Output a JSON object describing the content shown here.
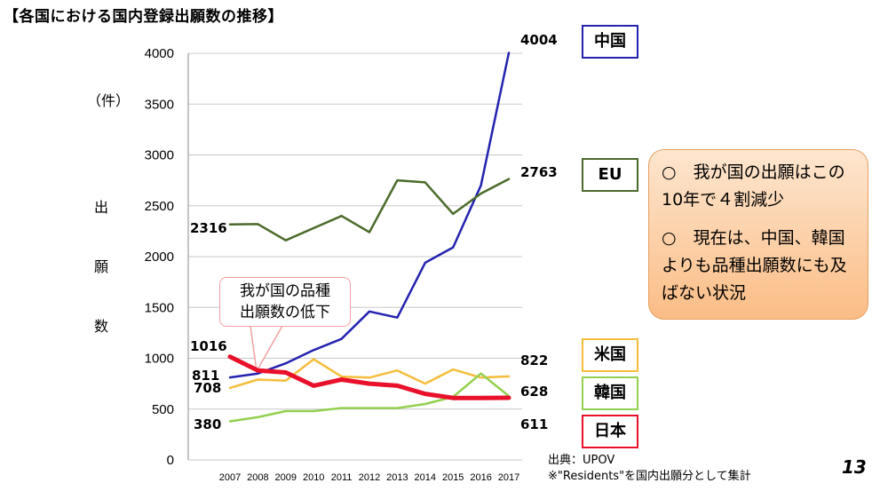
{
  "title": "【各国における国内登録出願数の推移】",
  "unit_label": "（件）",
  "y_axis_label_chars": [
    "出",
    "願",
    "数"
  ],
  "callout": {
    "line1": "我が国の品種",
    "line2": "出願数の低下"
  },
  "note": {
    "point1": "○　我が国の出願はこの10年で４割減少",
    "point2": "○　現在は、中国、韓国よりも品種出願数にも及ばない状況"
  },
  "source": {
    "line1": "出典：UPOV",
    "line2": "※\"Residents\"を国内出願分として集計"
  },
  "page_number": "13",
  "chart_data": {
    "type": "line",
    "x": [
      "2007",
      "2008",
      "2009",
      "2010",
      "2011",
      "2012",
      "2013",
      "2014",
      "2015",
      "2016",
      "2017"
    ],
    "ylim": [
      0,
      4000
    ],
    "yticks": [
      "0",
      "500",
      "1000",
      "1500",
      "2000",
      "2500",
      "3000",
      "3500",
      "4000"
    ],
    "series": [
      {
        "name": "中国",
        "color": "#2323b0",
        "width": 2.5,
        "values": [
          811,
          850,
          950,
          1080,
          1190,
          1460,
          1400,
          1940,
          2090,
          2700,
          4004
        ],
        "start_label": "811",
        "end_label": "4004"
      },
      {
        "name": "EU",
        "color": "#4b6b2a",
        "width": 2.5,
        "values": [
          2316,
          2320,
          2160,
          2280,
          2400,
          2240,
          2750,
          2730,
          2420,
          2620,
          2763
        ],
        "start_label": "2316",
        "end_label": "2763"
      },
      {
        "name": "米国",
        "color": "#f5bd3c",
        "width": 2.5,
        "values": [
          708,
          790,
          780,
          990,
          820,
          810,
          880,
          750,
          890,
          810,
          822
        ],
        "start_label": "708",
        "end_label": "822"
      },
      {
        "name": "韓国",
        "color": "#92d050",
        "width": 2.5,
        "values": [
          380,
          420,
          480,
          480,
          510,
          510,
          510,
          550,
          620,
          850,
          628
        ],
        "start_label": "380",
        "end_label": "628"
      },
      {
        "name": "日本",
        "color": "#e8102a",
        "width": 5,
        "values": [
          1016,
          880,
          860,
          730,
          790,
          750,
          730,
          650,
          610,
          610,
          611
        ],
        "start_label": "1016",
        "end_label": "611"
      }
    ]
  }
}
